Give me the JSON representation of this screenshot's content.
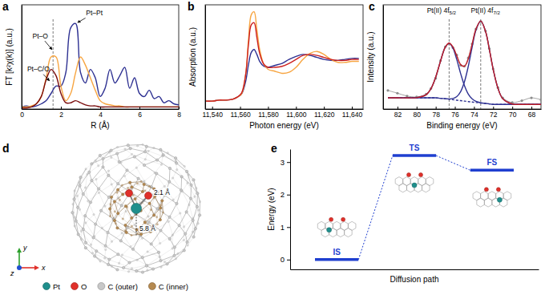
{
  "chart_data": [
    {
      "type": "line",
      "title": "a",
      "xlabel": "R (Å)",
      "ylabel": "FT [k²χ(k)] (a.u.)",
      "x": [
        0,
        0.25,
        0.5,
        0.75,
        1,
        1.25,
        1.5,
        1.75,
        2,
        2.25,
        2.5,
        2.75,
        3,
        3.25,
        3.5,
        3.75,
        4,
        4.25,
        4.5,
        4.75,
        5,
        5.25,
        5.5,
        5.75,
        6,
        6.25,
        6.5,
        6.75,
        7,
        7.25,
        7.5,
        7.75,
        8
      ],
      "series": [
        {
          "color": "#2e3192",
          "values": [
            0.02,
            0.03,
            0.02,
            0.03,
            0.05,
            0.08,
            0.15,
            0.22,
            0.22,
            0.35,
            0.78,
            0.82,
            0.35,
            0.25,
            0.38,
            0.3,
            0.12,
            0.2,
            0.38,
            0.25,
            0.32,
            0.4,
            0.2,
            0.3,
            0.15,
            0.12,
            0.18,
            0.1,
            0.12,
            0.06,
            0.08,
            0.05,
            0.04
          ]
        },
        {
          "color": "#f7a541",
          "values": [
            0.02,
            0.02,
            0.03,
            0.05,
            0.12,
            0.3,
            0.5,
            0.5,
            0.22,
            0.08,
            0.15,
            0.35,
            0.5,
            0.42,
            0.3,
            0.18,
            0.08,
            0.05,
            0.04,
            0.03,
            0.03,
            0.02,
            0.02,
            0.02,
            0.02,
            0.02,
            0.02,
            0.02,
            0.02,
            0.02,
            0.02,
            0.02,
            0.02
          ]
        },
        {
          "color": "#7a0c0c",
          "values": [
            0.01,
            0.01,
            0.02,
            0.05,
            0.12,
            0.28,
            0.38,
            0.32,
            0.15,
            0.06,
            0.06,
            0.08,
            0.06,
            0.04,
            0.03,
            0.03,
            0.02,
            0.02,
            0.02,
            0.02,
            0.02,
            0.02,
            0.02,
            0.02,
            0.02,
            0.02,
            0.02,
            0.02,
            0.02,
            0.02,
            0.02,
            0.02,
            0.02
          ]
        }
      ],
      "xlim": [
        0,
        8
      ],
      "xticks": [
        0,
        2,
        4,
        6,
        8
      ],
      "ylim": [
        0,
        1
      ],
      "yticks": [],
      "tick_labels": "x",
      "vlines": [
        1.6
      ],
      "annotations": [
        {
          "text": "Pt–O",
          "x": 0.95,
          "y": 0.68,
          "arrow_to": [
            1.55,
            0.57
          ]
        },
        {
          "text": "Pt–Pt",
          "x": 3.7,
          "y": 0.9,
          "arrow_to": [
            2.85,
            0.83
          ]
        },
        {
          "text": "Pt–C/O",
          "x": 0.85,
          "y": 0.36,
          "arrow_to": [
            1.42,
            0.27
          ]
        }
      ]
    },
    {
      "type": "line",
      "title": "b",
      "xlabel": "Photon energy (eV)",
      "ylabel": "Absorption (a.u.)",
      "x": [
        11535,
        11540,
        11545,
        11550,
        11555,
        11558,
        11561,
        11564,
        11566,
        11568,
        11570,
        11572,
        11574,
        11577,
        11580,
        11585,
        11590,
        11595,
        11600,
        11605,
        11610,
        11615,
        11620,
        11625,
        11630,
        11635,
        11640,
        11645
      ],
      "series": [
        {
          "color": "#2e3192",
          "values": [
            0.08,
            0.08,
            0.09,
            0.09,
            0.1,
            0.12,
            0.15,
            0.28,
            0.45,
            0.57,
            0.6,
            0.55,
            0.48,
            0.43,
            0.42,
            0.44,
            0.46,
            0.5,
            0.53,
            0.55,
            0.54,
            0.52,
            0.5,
            0.49,
            0.49,
            0.5,
            0.51,
            0.51
          ]
        },
        {
          "color": "#f7a541",
          "values": [
            0.08,
            0.08,
            0.09,
            0.09,
            0.1,
            0.12,
            0.15,
            0.35,
            0.7,
            0.95,
            0.98,
            0.8,
            0.6,
            0.45,
            0.4,
            0.38,
            0.36,
            0.37,
            0.42,
            0.5,
            0.56,
            0.58,
            0.55,
            0.5,
            0.47,
            0.47,
            0.48,
            0.48
          ]
        },
        {
          "color": "#cc2020",
          "values": [
            0.08,
            0.08,
            0.09,
            0.09,
            0.1,
            0.12,
            0.16,
            0.35,
            0.65,
            0.85,
            0.87,
            0.72,
            0.56,
            0.45,
            0.42,
            0.42,
            0.43,
            0.46,
            0.5,
            0.54,
            0.55,
            0.54,
            0.52,
            0.5,
            0.49,
            0.49,
            0.5,
            0.5
          ]
        }
      ],
      "xlim": [
        11535,
        11648
      ],
      "xticks": [
        {
          "value": 11540,
          "label": "11,540"
        },
        {
          "value": 11560,
          "label": "11,560"
        },
        {
          "value": 11580,
          "label": "11,580"
        },
        {
          "value": 11600,
          "label": "11,600"
        },
        {
          "value": 11620,
          "label": "11,620"
        },
        {
          "value": 11640,
          "label": "11,640"
        }
      ],
      "ylim": [
        0,
        1.05
      ],
      "yticks": [],
      "tick_labels": "x"
    },
    {
      "type": "line",
      "title": "c",
      "xlabel": "Binding energy (eV)",
      "ylabel": "Intensity (a.u.)",
      "x": [
        83,
        82,
        81,
        80,
        79,
        78.5,
        78,
        77.5,
        77,
        76.6,
        76.2,
        75.8,
        75.4,
        75,
        74.6,
        74.2,
        73.8,
        73.3,
        72.8,
        72.4,
        72,
        71.5,
        71,
        70,
        69,
        68,
        67
      ],
      "series": [
        {
          "color": "#8c8c8c",
          "marker": "circle",
          "values": [
            0.2,
            0.17,
            0.14,
            0.13,
            0.16,
            0.22,
            0.33,
            0.52,
            0.67,
            0.7,
            0.66,
            0.58,
            0.47,
            0.46,
            0.55,
            0.7,
            0.86,
            0.94,
            0.84,
            0.65,
            0.43,
            0.23,
            0.12,
            0.07,
            0.09,
            0.12,
            0.1
          ]
        },
        {
          "color": "#2e3192",
          "values": [
            0.12,
            0.12,
            0.12,
            0.122,
            0.154,
            0.218,
            0.345,
            0.515,
            0.664,
            0.705,
            0.654,
            0.531,
            0.382,
            0.252,
            0.161,
            0.109,
            0.082,
            0.067,
            0.06,
            0.055,
            0.05,
            0.05,
            0.05,
            0.05,
            0.05,
            0.05,
            0.05
          ]
        },
        {
          "color": "#2e3192",
          "values": [
            0.12,
            0.12,
            0.12,
            0.12,
            0.12,
            0.12,
            0.12,
            0.115,
            0.111,
            0.109,
            0.113,
            0.134,
            0.187,
            0.293,
            0.458,
            0.662,
            0.846,
            0.945,
            0.836,
            0.642,
            0.428,
            0.224,
            0.112,
            0.054,
            0.05,
            0.05,
            0.05
          ]
        },
        {
          "color": "#2e3192",
          "line_style": "dashed",
          "values": [
            0.12,
            0.12,
            0.12,
            0.12,
            0.12,
            0.12,
            0.12,
            0.115,
            0.11,
            0.105,
            0.1,
            0.095,
            0.09,
            0.085,
            0.08,
            0.075,
            0.07,
            0.065,
            0.06,
            0.055,
            0.05,
            0.05,
            0.05,
            0.05,
            0.05,
            0.05,
            0.05
          ]
        },
        {
          "color": "#c0202a",
          "values": [
            0.12,
            0.12,
            0.12,
            0.122,
            0.154,
            0.218,
            0.345,
            0.515,
            0.665,
            0.709,
            0.667,
            0.57,
            0.479,
            0.46,
            0.539,
            0.696,
            0.858,
            0.947,
            0.836,
            0.642,
            0.428,
            0.224,
            0.112,
            0.054,
            0.05,
            0.05,
            0.05
          ]
        }
      ],
      "xlim": [
        83.5,
        67
      ],
      "xticks": [
        82,
        80,
        78,
        76,
        74,
        72,
        70,
        68
      ],
      "ylim": [
        0,
        1.12
      ],
      "yticks": [],
      "tick_labels": "x",
      "vlines": [
        76.6,
        73.3
      ],
      "annotations": [
        {
          "text": "Pt(II) 4f5/2",
          "x": 77.4,
          "y": 1.03
        },
        {
          "text": "Pt(II) 4f7/2",
          "x": 72.8,
          "y": 1.03
        }
      ]
    },
    {
      "type": "energy_profile",
      "title": "e",
      "xlabel": "Diffusion path",
      "ylabel": "Energy (eV)",
      "categories": [
        "IS",
        "TS",
        "FS"
      ],
      "values": [
        0,
        3.2,
        2.75
      ],
      "color": "#1f3fd0",
      "ylim": [
        -0.3,
        3.4
      ],
      "yticks": [
        0,
        1,
        2,
        3
      ],
      "tick_labels": "y"
    }
  ],
  "diagram": {
    "title": "d",
    "distances": [
      "2.1 Å",
      "5.8 Å"
    ],
    "axes": [
      {
        "label": "x",
        "color": "#e0302a"
      },
      {
        "label": "y",
        "color": "#2ca02c"
      },
      {
        "label": "z",
        "color": "#1f4fd0"
      }
    ],
    "legend": [
      {
        "label": "Pt",
        "color": "#1f8f8c"
      },
      {
        "label": "O",
        "color": "#e0302a"
      },
      {
        "label": "C (outer)",
        "color": "#c8c8c8"
      },
      {
        "label": "C (inner)",
        "color": "#b5894f"
      }
    ]
  }
}
